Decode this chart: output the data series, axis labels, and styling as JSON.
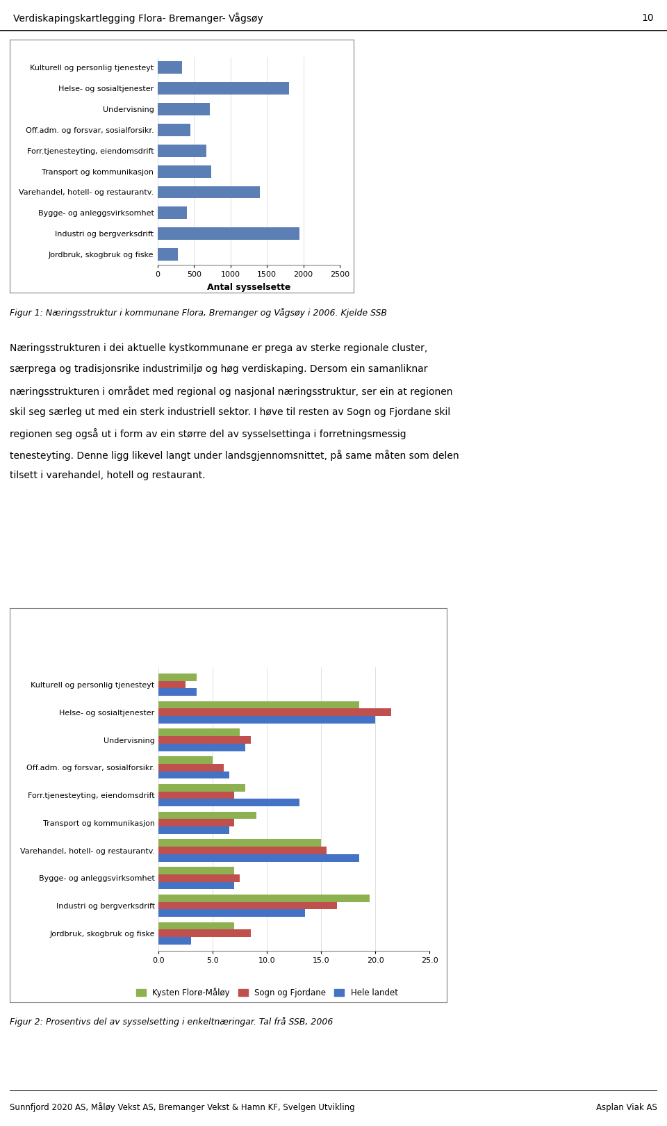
{
  "header_text": "Verdiskapingskartlegging Flora- Bremanger- Vågsøy",
  "page_number": "10",
  "footer_left": "Sunnfjord 2020 AS, Måløy Vekst AS, Bremanger Vekst & Hamn KF, Svelgen Utvikling",
  "footer_right": "Asplan Viak AS",
  "chart1_xlabel": "Antal sysselsette",
  "chart1_categories": [
    "Jordbruk, skogbruk og fiske",
    "Industri og bergverksdrift",
    "Bygge- og anleggsvirksomhet",
    "Varehandel, hotell- og restaurantv.",
    "Transport og kommunikasjon",
    "Forr.tjenesteyting, eiendomsdrift",
    "Off.adm. og forsvar, sosialforsikr.",
    "Undervisning",
    "Helse- og sosialtjenester",
    "Kulturell og personlig tjenesteyt"
  ],
  "chart1_values": [
    280,
    1950,
    400,
    1400,
    730,
    670,
    450,
    720,
    1800,
    330
  ],
  "chart1_bar_color": "#5b7fb5",
  "chart1_xlim": [
    0,
    2500
  ],
  "chart1_xticks": [
    0,
    500,
    1000,
    1500,
    2000,
    2500
  ],
  "body_text_lines": [
    "Næringsstrukturen i dei aktuelle kystkommunane er prega av sterke regionale cluster,",
    "særprega og tradisjonsrike industrimiljø og høg verdiskaping. Dersom ein samanliknar",
    "næringsstrukturen i området med regional og nasjonal næringsstruktur, ser ein at regionen",
    "skil seg særleg ut med ein sterk industriell sektor. I høve til resten av Sogn og Fjordane skil",
    "regionen seg også ut i form av ein større del av sysselsettinga i forretningsmessig",
    "tenesteyting. Denne ligg likevel langt under landsgjennomsnittet, på same måten som delen",
    "tilsett i varehandel, hotell og restaurant."
  ],
  "chart2_categories": [
    "Jordbruk, skogbruk og fiske",
    "Industri og bergverksdrift",
    "Bygge- og anleggsvirksomhet",
    "Varehandel, hotell- og restaurantv.",
    "Transport og kommunikasjon",
    "Forr.tjenesteyting, eiendomsdrift",
    "Off.adm. og forsvar, sosialforsikr.",
    "Undervisning",
    "Helse- og sosialtjenester",
    "Kulturell og personlig tjenesteyt"
  ],
  "chart2_kysten": [
    7.0,
    19.5,
    7.0,
    15.0,
    9.0,
    8.0,
    5.0,
    7.5,
    18.5,
    3.5
  ],
  "chart2_sogn": [
    8.5,
    16.5,
    7.5,
    15.5,
    7.0,
    7.0,
    6.0,
    8.5,
    21.5,
    2.5
  ],
  "chart2_hele": [
    3.0,
    13.5,
    7.0,
    18.5,
    6.5,
    13.0,
    6.5,
    8.0,
    20.0,
    3.5
  ],
  "chart2_xlim": [
    0,
    25
  ],
  "chart2_xticks": [
    0.0,
    5.0,
    10.0,
    15.0,
    20.0,
    25.0
  ],
  "chart2_color_kysten": "#8db050",
  "chart2_color_sogn": "#c0504d",
  "chart2_color_hele": "#4472c4",
  "chart2_legend": [
    "Kysten Florø-Måløy",
    "Sogn og Fjordane",
    "Hele landet"
  ],
  "fig1_caption": "Figur 1: Næringsstruktur i kommunane Flora, Bremanger og Vågsøy i 2006. Kjelde SSB",
  "fig2_caption": "Figur 2: Prosentivs del av sysselsetting i enkeltnæringar. Tal frå SSB, 2006"
}
